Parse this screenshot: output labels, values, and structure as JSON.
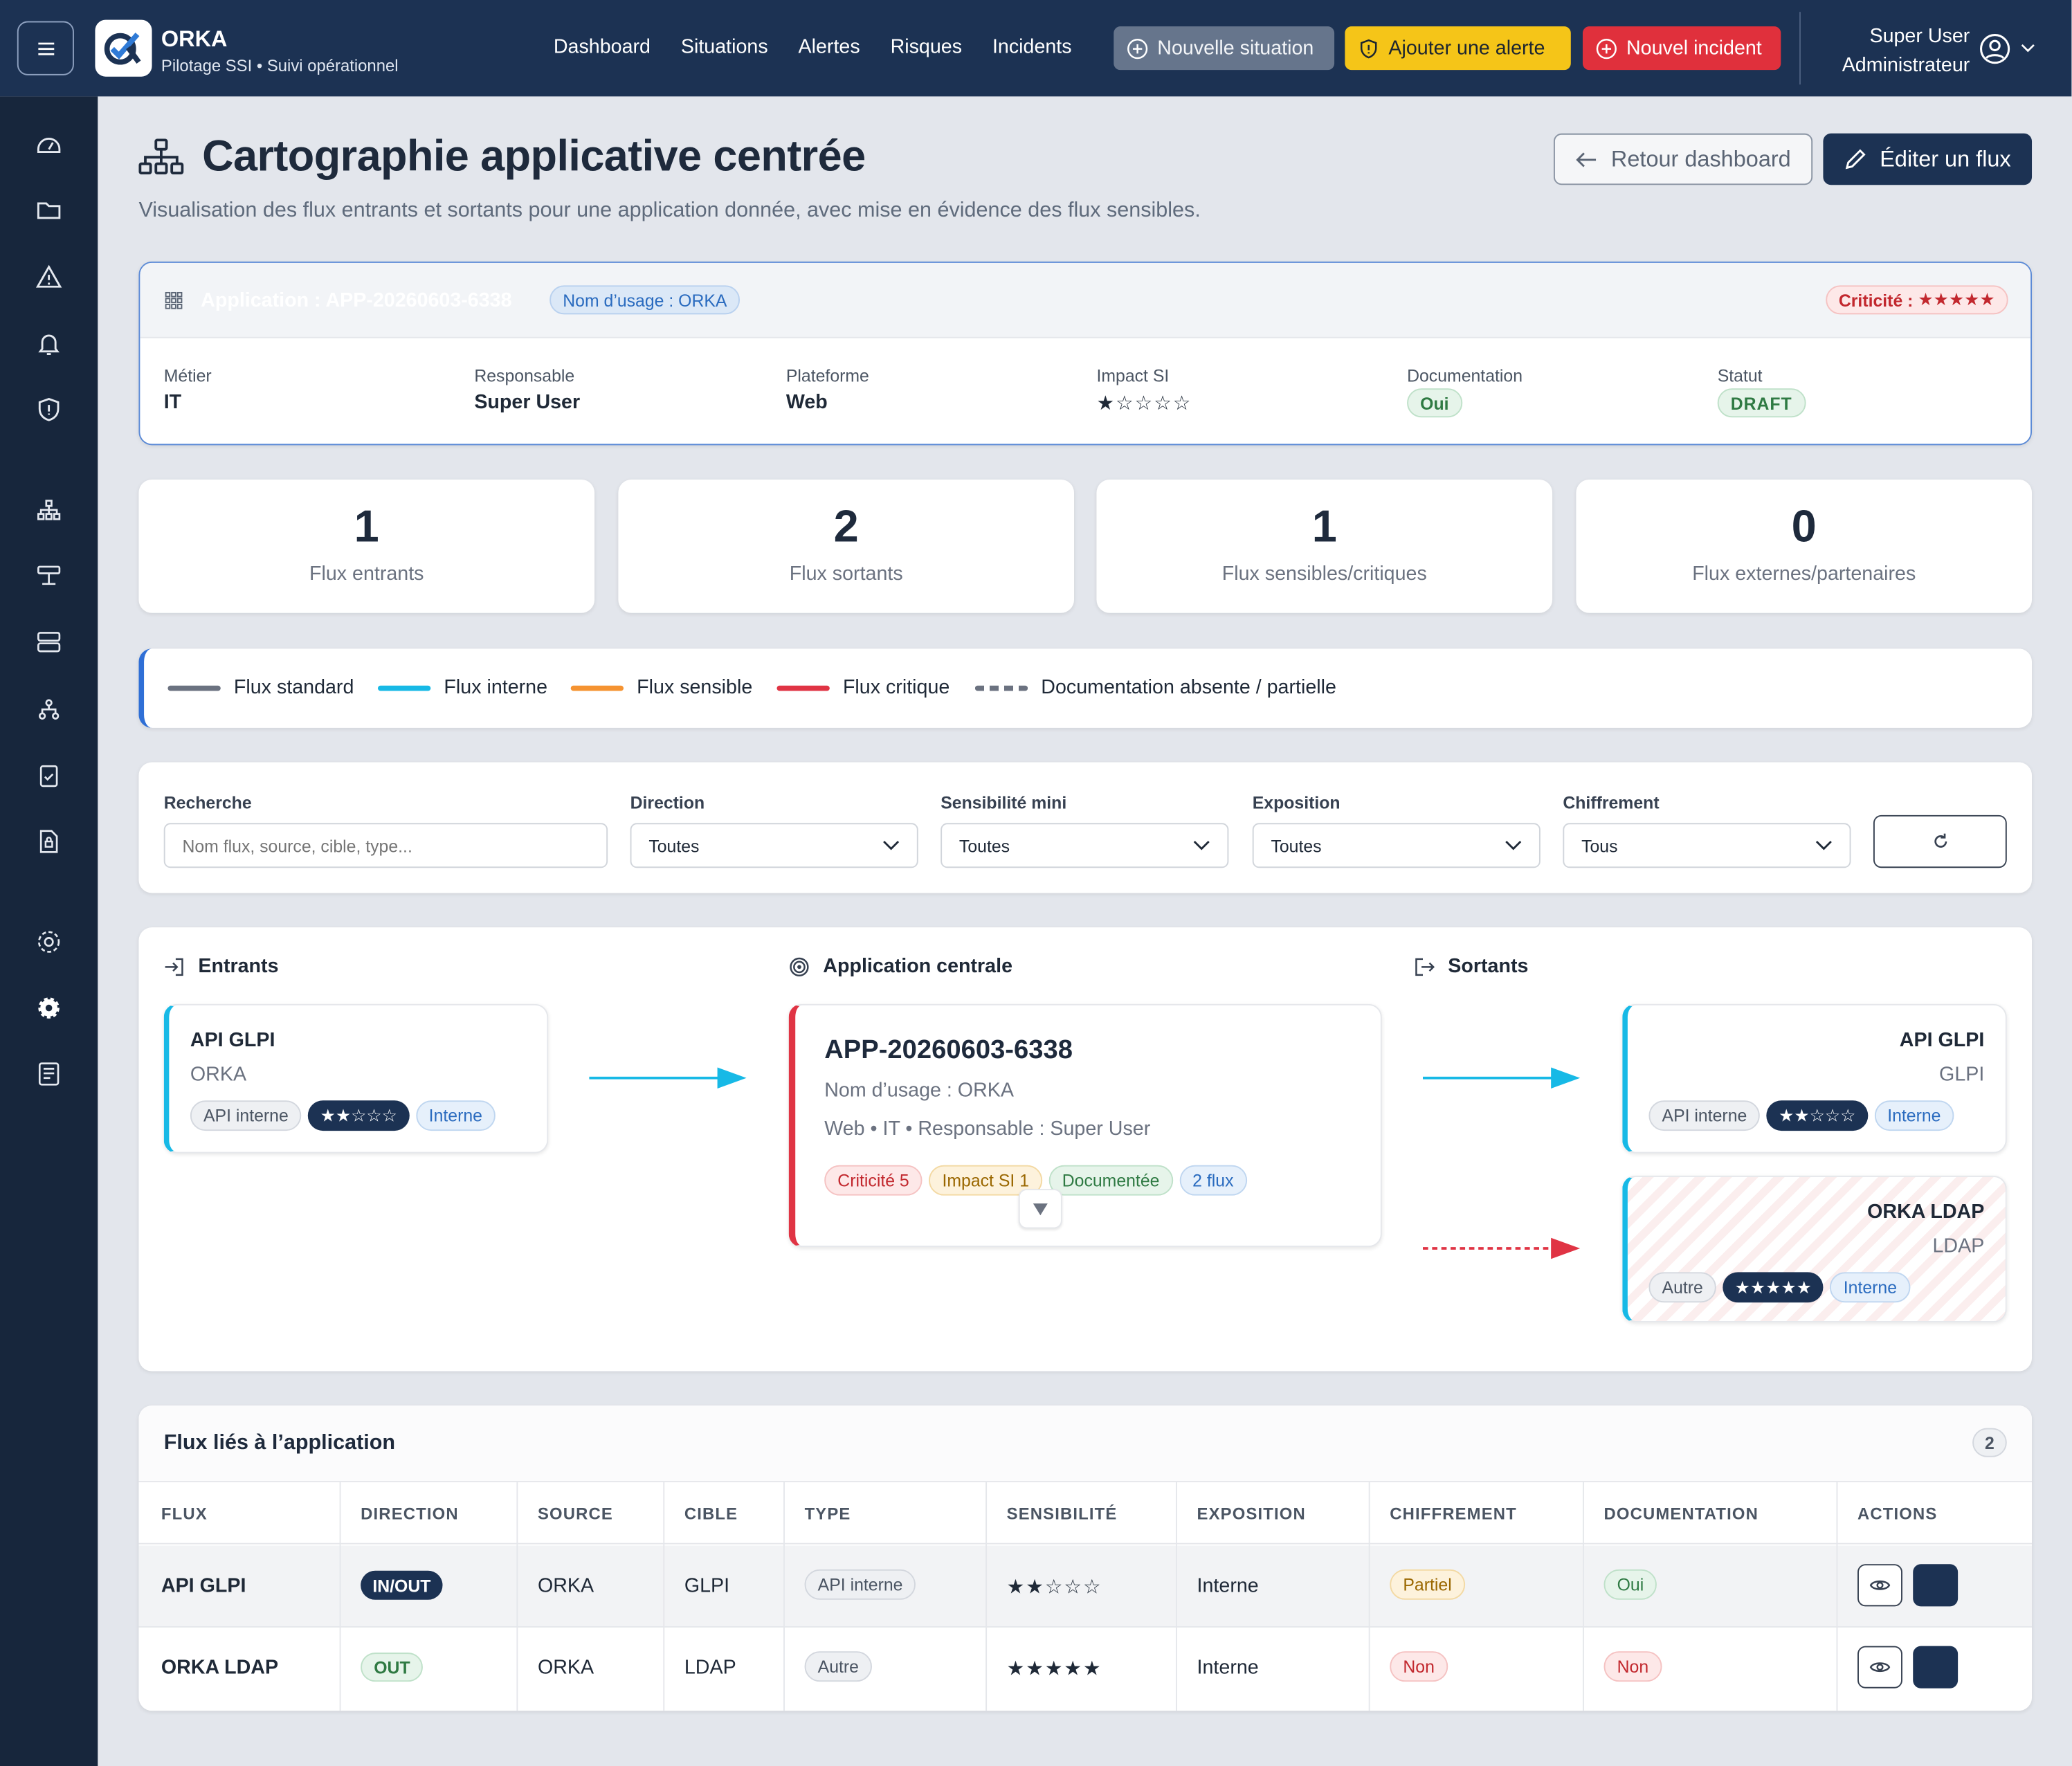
{
  "topbar": {
    "brand": "ORKA",
    "subtitle": "Pilotage SSI • Suivi opérationnel",
    "nav": [
      "Dashboard",
      "Situations",
      "Alertes",
      "Risques",
      "Incidents"
    ],
    "btn_situation": "Nouvelle situation",
    "btn_alerte": "Ajouter une alerte",
    "btn_incident": "Nouvel incident",
    "user_name": "Super User",
    "user_role": "Administrateur"
  },
  "page": {
    "title": "Cartographie applicative centrée",
    "subtitle": "Visualisation des flux entrants et sortants pour une application donnée, avec mise en évidence des flux sensibles.",
    "btn_back": "Retour dashboard",
    "btn_edit": "Éditer un flux"
  },
  "app": {
    "title": "Application : APP-20260603-6338",
    "usage_pill": "Nom d’usage : ORKA",
    "criticite_label": "Criticité :",
    "criticite_stars": "★★★★★",
    "meta": [
      {
        "label": "Métier",
        "value": "IT"
      },
      {
        "label": "Responsable",
        "value": "Super User"
      },
      {
        "label": "Plateforme",
        "value": "Web"
      },
      {
        "label": "Impact SI",
        "value": "★☆☆☆☆"
      },
      {
        "label": "Documentation",
        "value": "Oui"
      },
      {
        "label": "Statut",
        "value": "DRAFT"
      }
    ]
  },
  "stats": [
    {
      "value": "1",
      "label": "Flux entrants"
    },
    {
      "value": "2",
      "label": "Flux sortants"
    },
    {
      "value": "1",
      "label": "Flux sensibles/critiques"
    },
    {
      "value": "0",
      "label": "Flux externes/partenaires"
    }
  ],
  "legend": [
    {
      "label": "Flux standard",
      "color": "#6b7280"
    },
    {
      "label": "Flux interne",
      "color": "#17b9e6"
    },
    {
      "label": "Flux sensible",
      "color": "#f59331"
    },
    {
      "label": "Flux critique",
      "color": "#e03444"
    },
    {
      "label": "Documentation absente / partielle",
      "color": "#6b7280"
    }
  ],
  "filters": {
    "search_label": "Recherche",
    "search_placeholder": "Nom flux, source, cible, type...",
    "direction_label": "Direction",
    "direction_value": "Toutes",
    "sens_label": "Sensibilité mini",
    "sens_value": "Toutes",
    "expo_label": "Exposition",
    "expo_value": "Toutes",
    "chiff_label": "Chiffrement",
    "chiff_value": "Tous"
  },
  "flow": {
    "in_header": "Entrants",
    "center_header": "Application centrale",
    "out_header": "Sortants",
    "incoming": [
      {
        "name": "API GLPI",
        "sub": "ORKA",
        "type": "API interne",
        "stars": "★★☆☆☆",
        "expo": "Interne"
      }
    ],
    "center": {
      "name": "APP-20260603-6338",
      "usage": "Nom d’usage : ORKA",
      "info": "Web • IT • Responsable : Super User",
      "tags": [
        "Criticité 5",
        "Impact SI 1",
        "Documentée",
        "2 flux"
      ]
    },
    "outgoing": [
      {
        "name": "API GLPI",
        "sub": "GLPI",
        "type": "API interne",
        "stars": "★★☆☆☆",
        "expo": "Interne"
      },
      {
        "name": "ORKA LDAP",
        "sub": "LDAP",
        "type": "Autre",
        "stars": "★★★★★",
        "expo": "Interne"
      }
    ]
  },
  "table": {
    "title": "Flux liés à l’application",
    "count": "2",
    "headers": [
      "FLUX",
      "DIRECTION",
      "SOURCE",
      "CIBLE",
      "TYPE",
      "SENSIBILITÉ",
      "EXPOSITION",
      "CHIFFREMENT",
      "DOCUMENTATION",
      "ACTIONS"
    ],
    "rows": [
      {
        "flux": "API GLPI",
        "direction": "IN/OUT",
        "source": "ORKA",
        "cible": "GLPI",
        "type": "API interne",
        "sensibilite": "★★☆☆☆",
        "exposition": "Interne",
        "chiffrement": "Partiel",
        "documentation": "Oui"
      },
      {
        "flux": "ORKA LDAP",
        "direction": "OUT",
        "source": "ORKA",
        "cible": "LDAP",
        "type": "Autre",
        "sensibilite": "★★★★★",
        "exposition": "Interne",
        "chiffrement": "Non",
        "documentation": "Non"
      }
    ]
  }
}
